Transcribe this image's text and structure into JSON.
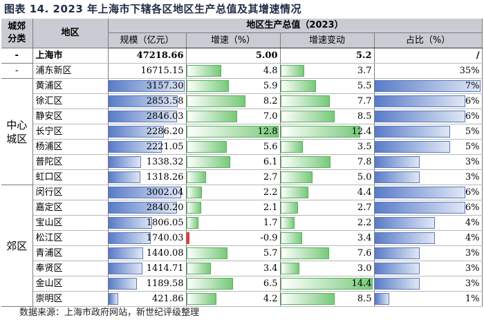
{
  "title": "图表 14.  2023 年上海市下辖各区地区生产总值及其增速情况",
  "headers": {
    "category": "城郊分类",
    "district": "地区",
    "group": "地区生产总值（2023）",
    "scale": "规模（亿元）",
    "growth": "增速（%）",
    "change": "增速变动",
    "share": "占比（%）"
  },
  "rows": [
    {
      "cat": "-",
      "district": "上海市",
      "scale": "47218.66",
      "growth": "5.00",
      "change": "5.2",
      "share": "/",
      "scale_v": 0,
      "growth_v": 0,
      "change_v": 0,
      "share_v": 0,
      "bold": true
    },
    {
      "cat": "-",
      "district": "浦东新区",
      "scale": "16715.15",
      "growth": "4.8",
      "change": "3.7",
      "share": "35%",
      "scale_v": 0,
      "growth_v": 0.375,
      "change_v": 0.257,
      "share_v": 0,
      "bold": false
    },
    {
      "cat": "中心城区",
      "district": "黄浦区",
      "scale": "3157.30",
      "growth": "5.9",
      "change": "5.5",
      "share": "7%",
      "scale_v": 1.0,
      "growth_v": 0.461,
      "change_v": 0.382,
      "share_v": 1.0
    },
    {
      "cat": "中心城区",
      "district": "徐汇区",
      "scale": "2853.58",
      "growth": "8.2",
      "change": "7.7",
      "share": "6%",
      "scale_v": 0.904,
      "growth_v": 0.641,
      "change_v": 0.535,
      "share_v": 0.857
    },
    {
      "cat": "中心城区",
      "district": "静安区",
      "scale": "2846.03",
      "growth": "7.0",
      "change": "8.5",
      "share": "6%",
      "scale_v": 0.901,
      "growth_v": 0.547,
      "change_v": 0.59,
      "share_v": 0.857
    },
    {
      "cat": "中心城区",
      "district": "长宁区",
      "scale": "2286.20",
      "growth": "12.8",
      "change": "12.4",
      "share": "5%",
      "scale_v": 0.724,
      "growth_v": 1.0,
      "change_v": 0.861,
      "share_v": 0.714
    },
    {
      "cat": "中心城区",
      "district": "杨浦区",
      "scale": "2221.05",
      "growth": "5.6",
      "change": "3.5",
      "share": "5%",
      "scale_v": 0.703,
      "growth_v": 0.438,
      "change_v": 0.243,
      "share_v": 0.714
    },
    {
      "cat": "中心城区",
      "district": "普陀区",
      "scale": "1338.32",
      "growth": "6.1",
      "change": "7.8",
      "share": "3%",
      "scale_v": 0.424,
      "growth_v": 0.477,
      "change_v": 0.542,
      "share_v": 0.429
    },
    {
      "cat": "中心城区",
      "district": "虹口区",
      "scale": "1318.26",
      "growth": "2.7",
      "change": "5.0",
      "share": "3%",
      "scale_v": 0.418,
      "growth_v": 0.211,
      "change_v": 0.347,
      "share_v": 0.429
    },
    {
      "cat": "郊区",
      "district": "闵行区",
      "scale": "3002.04",
      "growth": "2.2",
      "change": "4.4",
      "share": "6%",
      "scale_v": 0.951,
      "growth_v": 0.172,
      "change_v": 0.306,
      "share_v": 0.857
    },
    {
      "cat": "郊区",
      "district": "嘉定区",
      "scale": "2840.20",
      "growth": "2.1",
      "change": "2.7",
      "share": "6%",
      "scale_v": 0.9,
      "growth_v": 0.164,
      "change_v": 0.188,
      "share_v": 0.857
    },
    {
      "cat": "郊区",
      "district": "宝山区",
      "scale": "1806.05",
      "growth": "1.7",
      "change": "2.2",
      "share": "4%",
      "scale_v": 0.572,
      "growth_v": 0.133,
      "change_v": 0.153,
      "share_v": 0.571
    },
    {
      "cat": "郊区",
      "district": "松江区",
      "scale": "1740.03",
      "growth": "-0.9",
      "change": "3.4",
      "share": "4%",
      "scale_v": 0.551,
      "growth_v": -0.9,
      "change_v": 0.236,
      "share_v": 0.571
    },
    {
      "cat": "郊区",
      "district": "青浦区",
      "scale": "1440.08",
      "growth": "5.7",
      "change": "7.6",
      "share": "3%",
      "scale_v": 0.456,
      "growth_v": 0.445,
      "change_v": 0.528,
      "share_v": 0.429
    },
    {
      "cat": "郊区",
      "district": "奉贤区",
      "scale": "1414.71",
      "growth": "3.4",
      "change": "3.0",
      "share": "3%",
      "scale_v": 0.448,
      "growth_v": 0.266,
      "change_v": 0.208,
      "share_v": 0.429
    },
    {
      "cat": "郊区",
      "district": "金山区",
      "scale": "1189.58",
      "growth": "6.5",
      "change": "14.4",
      "share": "3%",
      "scale_v": 0.377,
      "growth_v": 0.508,
      "change_v": 1.0,
      "share_v": 0.429
    },
    {
      "cat": "郊区",
      "district": "崇明区",
      "scale": "421.86",
      "growth": "4.2",
      "change": "8.5",
      "share": "1%",
      "scale_v": 0.134,
      "growth_v": 0.328,
      "change_v": 0.59,
      "share_v": 0.143
    }
  ],
  "categories": {
    "dash1": "-",
    "dash2": "-",
    "central": "中心城区",
    "suburb": "郊区"
  },
  "source": "数据来源：上海市政府网站，新世纪评级整理",
  "colors": {
    "blue": "#5a7cc8",
    "green": "#78c97a",
    "red": "#e23b3b",
    "header": "#c9ccd3"
  }
}
